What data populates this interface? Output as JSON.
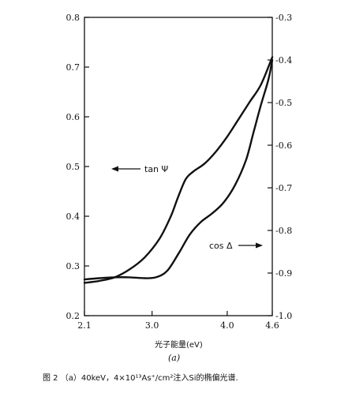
{
  "chart_data": {
    "type": "line",
    "x_ticks": [
      "2.1",
      "3.0",
      "4.0",
      "4.6"
    ],
    "y_left_ticks": [
      "0.8",
      "0.7",
      "0.6",
      "0.5",
      "0.4",
      "0.3",
      "0.2"
    ],
    "y_right_ticks": [
      "0.3",
      "0.4",
      "0.5",
      "0.6",
      "0.7",
      "0.8",
      "0.9",
      "1.0"
    ],
    "xlim": [
      2.1,
      4.6
    ],
    "y_left_lim": [
      0.2,
      0.8
    ],
    "y_right_lim": [
      -1.0,
      -0.3
    ],
    "y_right_inverted": true,
    "series": [
      {
        "name": "tan Ψ",
        "axis": "left",
        "x": [
          2.1,
          2.3,
          2.5,
          2.7,
          2.9,
          3.1,
          3.25,
          3.35,
          3.45,
          3.55,
          3.7,
          3.85,
          4.0,
          4.15,
          4.3,
          4.45,
          4.6
        ],
        "y": [
          0.266,
          0.27,
          0.277,
          0.293,
          0.317,
          0.355,
          0.4,
          0.44,
          0.475,
          0.49,
          0.506,
          0.53,
          0.56,
          0.595,
          0.63,
          0.665,
          0.72
        ]
      },
      {
        "name": "cos Δ",
        "axis": "right",
        "x": [
          2.1,
          2.3,
          2.5,
          2.7,
          2.9,
          3.05,
          3.2,
          3.35,
          3.5,
          3.65,
          3.8,
          3.95,
          4.1,
          4.25,
          4.35,
          4.45,
          4.55,
          4.6
        ],
        "y": [
          -0.915,
          -0.912,
          -0.91,
          -0.91,
          -0.912,
          -0.91,
          -0.895,
          -0.855,
          -0.81,
          -0.78,
          -0.76,
          -0.735,
          -0.695,
          -0.635,
          -0.57,
          -0.505,
          -0.445,
          -0.4
        ]
      }
    ],
    "annotations": [
      "tan Ψ",
      "cos Δ"
    ],
    "xlabel": "光子能量(eV)",
    "panel_label": "(a)",
    "grid": false
  },
  "caption": "图 2 （a）40keV，4×10¹³As⁺/cm²注入Si的椭偏光谱."
}
